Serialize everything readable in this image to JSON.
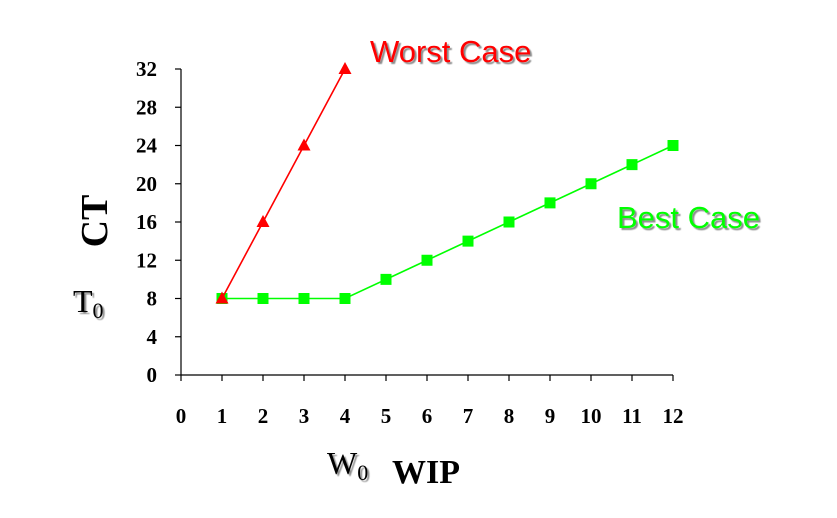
{
  "chart_data": {
    "type": "line",
    "x": [
      0,
      1,
      2,
      3,
      4,
      5,
      6,
      7,
      8,
      9,
      10,
      11,
      12
    ],
    "xlim": [
      0,
      12
    ],
    "ylim": [
      0,
      32
    ],
    "y_ticks": [
      0,
      4,
      8,
      12,
      16,
      20,
      24,
      28,
      32
    ],
    "x_ticks": [
      0,
      1,
      2,
      3,
      4,
      5,
      6,
      7,
      8,
      9,
      10,
      11,
      12
    ],
    "xlabel": "WIP",
    "ylabel": "CT",
    "x_marker_label": {
      "main": "W",
      "sub": "0",
      "value": 4
    },
    "y_marker_label": {
      "main": "T",
      "sub": "0",
      "value": 8
    },
    "grid": false,
    "series": [
      {
        "name": "Worst Case",
        "color": "#ff0000",
        "marker": "triangle",
        "x": [
          1,
          2,
          3,
          4
        ],
        "values": [
          8,
          16,
          24,
          32
        ]
      },
      {
        "name": "Best Case",
        "color": "#00ff00",
        "marker": "square",
        "x": [
          1,
          2,
          3,
          4,
          5,
          6,
          7,
          8,
          9,
          10,
          11,
          12
        ],
        "values": [
          8,
          8,
          8,
          8,
          10,
          12,
          14,
          16,
          18,
          20,
          22,
          24
        ]
      }
    ]
  }
}
